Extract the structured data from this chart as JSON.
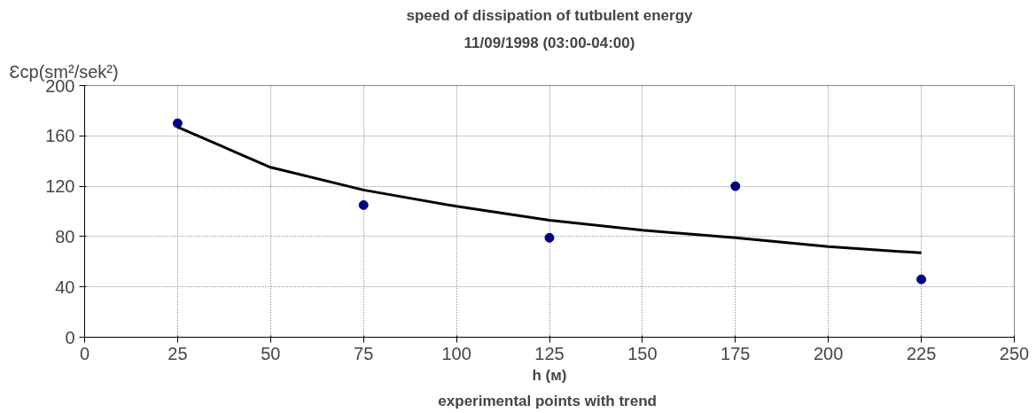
{
  "chart_data": {
    "type": "scatter",
    "title": "speed of dissipation of tutbulent energy",
    "subtitle": "11/09/1998 (03:00-04:00)",
    "ylabel": "Ɛcp(sm²/sek²)",
    "xlabel": "h (м)",
    "annotations": [
      "experimental points with  trend"
    ],
    "series": [
      {
        "color": "#000080",
        "marker": "circle",
        "x": [
          25,
          75,
          125,
          175,
          225
        ],
        "values": [
          170,
          105,
          79,
          120,
          46
        ]
      },
      {
        "type": "line",
        "color": "#000000",
        "x": [
          25,
          50,
          75,
          100,
          125,
          150,
          175,
          200,
          225
        ],
        "values": [
          167,
          135,
          117,
          104,
          93,
          85,
          79,
          72,
          67
        ]
      }
    ],
    "xlim": [
      0,
      250
    ],
    "xticks": [
      0,
      25,
      50,
      75,
      100,
      125,
      150,
      175,
      200,
      225,
      250
    ],
    "ylim": [
      0,
      200
    ],
    "yticks": [
      0,
      40,
      80,
      120,
      160,
      200
    ],
    "grid": true
  }
}
